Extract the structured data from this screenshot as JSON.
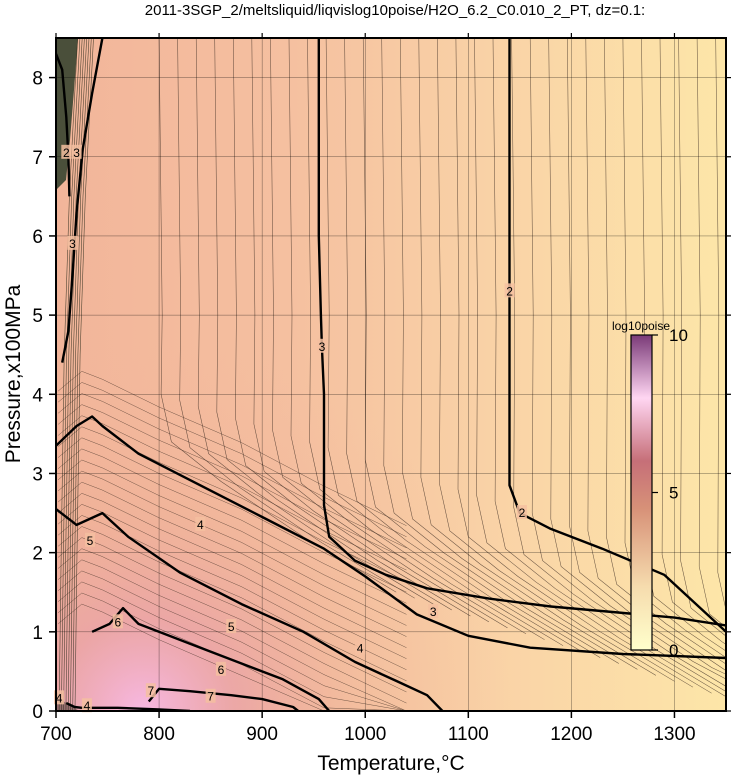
{
  "chart_data": {
    "type": "heatmap",
    "title": "2011-3SGP_2/meltsliquid/liqvislog10poise/H2O_6.2_C0.010_2_PT, dz=0.1:",
    "xlabel": "Temperature,°C",
    "ylabel": "Pressure,x100MPa",
    "xlim": [
      700,
      1350
    ],
    "ylim": [
      0,
      8.5
    ],
    "x_ticks": [
      700,
      800,
      900,
      1000,
      1100,
      1200,
      1300
    ],
    "y_ticks": [
      0,
      1,
      2,
      3,
      4,
      5,
      6,
      7,
      8
    ],
    "grid": true,
    "colorbar": {
      "title": "log10poise",
      "range": [
        0,
        10
      ],
      "ticks": [
        0,
        5,
        10
      ],
      "colors": [
        "#ffffcc",
        "#d9a27a",
        "#c7706f",
        "#ffd6f2",
        "#7a3a78"
      ]
    },
    "contours": [
      {
        "level": 2,
        "label": "2",
        "points": [
          [
            700,
            8.3
          ],
          [
            706,
            8.1
          ],
          [
            710,
            7.5
          ],
          [
            712,
            7.0
          ],
          [
            713,
            6.5
          ]
        ]
      },
      {
        "level": 3,
        "label": "3",
        "points": [
          [
            706,
            4.4
          ],
          [
            712,
            4.8
          ],
          [
            716,
            5.5
          ],
          [
            720,
            6.3
          ],
          [
            726,
            7.1
          ],
          [
            735,
            7.8
          ],
          [
            745,
            8.5
          ]
        ]
      },
      {
        "level": 3,
        "label": "3",
        "points": [
          [
            955,
            8.5
          ],
          [
            955,
            6.0
          ],
          [
            957,
            5.0
          ],
          [
            958,
            4.6
          ],
          [
            960,
            4.0
          ],
          [
            960,
            2.6
          ],
          [
            965,
            2.2
          ],
          [
            990,
            1.9
          ],
          [
            1020,
            1.72
          ],
          [
            1060,
            1.55
          ],
          [
            1120,
            1.42
          ],
          [
            1180,
            1.32
          ],
          [
            1240,
            1.25
          ],
          [
            1300,
            1.18
          ],
          [
            1350,
            1.08
          ]
        ]
      },
      {
        "level": 2,
        "label": "2",
        "points": [
          [
            1140,
            8.5
          ],
          [
            1140,
            5.5
          ],
          [
            1140,
            3.5
          ],
          [
            1140,
            2.85
          ],
          [
            1150,
            2.5
          ],
          [
            1180,
            2.3
          ],
          [
            1230,
            2.05
          ],
          [
            1290,
            1.72
          ],
          [
            1350,
            1.0
          ]
        ]
      },
      {
        "level": 4,
        "label": "4",
        "points": [
          [
            700,
            3.35
          ],
          [
            720,
            3.6
          ],
          [
            735,
            3.72
          ],
          [
            745,
            3.6
          ],
          [
            780,
            3.25
          ],
          [
            840,
            2.85
          ],
          [
            900,
            2.45
          ],
          [
            960,
            2.05
          ],
          [
            1000,
            1.7
          ],
          [
            1050,
            1.22
          ],
          [
            1100,
            0.95
          ],
          [
            1160,
            0.8
          ],
          [
            1250,
            0.72
          ],
          [
            1350,
            0.67
          ]
        ]
      },
      {
        "level": 5,
        "label": "5",
        "points": [
          [
            700,
            2.55
          ],
          [
            720,
            2.35
          ],
          [
            745,
            2.5
          ],
          [
            770,
            2.2
          ],
          [
            820,
            1.75
          ],
          [
            880,
            1.35
          ],
          [
            940,
            1.0
          ],
          [
            990,
            0.62
          ],
          [
            1030,
            0.38
          ],
          [
            1060,
            0.2
          ],
          [
            1075,
            0.0
          ]
        ]
      },
      {
        "level": 6,
        "label": "6",
        "points": [
          [
            735,
            1.0
          ],
          [
            752,
            1.1
          ],
          [
            765,
            1.3
          ],
          [
            780,
            1.1
          ],
          [
            830,
            0.85
          ],
          [
            880,
            0.6
          ],
          [
            920,
            0.4
          ],
          [
            955,
            0.15
          ],
          [
            965,
            0.0
          ]
        ]
      },
      {
        "level": 7,
        "label": "7",
        "points": [
          [
            790,
            0.12
          ],
          [
            800,
            0.28
          ],
          [
            830,
            0.25
          ],
          [
            870,
            0.2
          ],
          [
            900,
            0.15
          ],
          [
            930,
            0.05
          ],
          [
            935,
            0.0
          ]
        ]
      },
      {
        "level": 4,
        "label": "4",
        "points": [
          [
            710,
            0.1
          ],
          [
            718,
            0.05
          ],
          [
            725,
            0.04
          ],
          [
            760,
            0.04
          ],
          [
            800,
            0.02
          ],
          [
            830,
            0.0
          ]
        ]
      }
    ],
    "contour_labels": [
      {
        "text": "2",
        "x": 710,
        "y": 7.05
      },
      {
        "text": "3",
        "x": 720,
        "y": 7.05
      },
      {
        "text": "3",
        "x": 716,
        "y": 5.9
      },
      {
        "text": "3",
        "x": 958,
        "y": 4.6
      },
      {
        "text": "2",
        "x": 1140,
        "y": 5.3
      },
      {
        "text": "2",
        "x": 1152,
        "y": 2.5
      },
      {
        "text": "3",
        "x": 1066,
        "y": 1.25
      },
      {
        "text": "4",
        "x": 840,
        "y": 2.35
      },
      {
        "text": "4",
        "x": 995,
        "y": 0.79
      },
      {
        "text": "5",
        "x": 733,
        "y": 2.15
      },
      {
        "text": "5",
        "x": 870,
        "y": 1.06
      },
      {
        "text": "6",
        "x": 760,
        "y": 1.12
      },
      {
        "text": "6",
        "x": 860,
        "y": 0.52
      },
      {
        "text": "7",
        "x": 792,
        "y": 0.25
      },
      {
        "text": "7",
        "x": 850,
        "y": 0.18
      },
      {
        "text": "4",
        "x": 703,
        "y": 0.16
      },
      {
        "text": "4",
        "x": 730,
        "y": 0.06
      }
    ],
    "sample_values": [
      {
        "x": 750,
        "y": 6.0,
        "value": 3.4
      },
      {
        "x": 1000,
        "y": 6.0,
        "value": 2.8
      },
      {
        "x": 1300,
        "y": 6.0,
        "value": 1.6
      },
      {
        "x": 760,
        "y": 2.0,
        "value": 5.3
      },
      {
        "x": 1000,
        "y": 1.0,
        "value": 4.2
      },
      {
        "x": 780,
        "y": 0.3,
        "value": 7.3
      }
    ]
  }
}
